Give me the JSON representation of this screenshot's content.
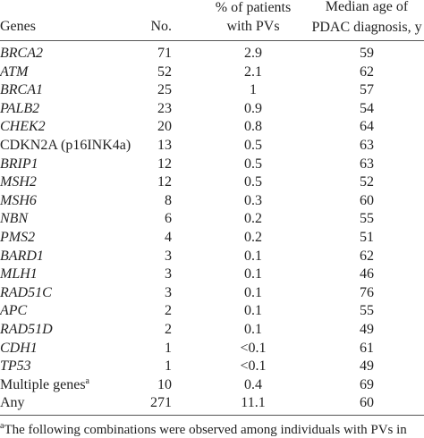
{
  "table": {
    "header": {
      "genes": "Genes",
      "no": "No.",
      "pct": [
        "% of patients",
        "with PVs"
      ],
      "age": [
        "Median age of",
        "PDAC diagnosis, y"
      ]
    },
    "rows": [
      {
        "gene": "BRCA2",
        "italic": true,
        "no": 71,
        "pct": 2.9,
        "age": 59
      },
      {
        "gene": "ATM",
        "italic": true,
        "no": 52,
        "pct": 2.1,
        "age": 62
      },
      {
        "gene": "BRCA1",
        "italic": true,
        "no": 25,
        "pct": 1,
        "age": 57
      },
      {
        "gene": "PALB2",
        "italic": true,
        "no": 23,
        "pct": 0.9,
        "age": 54
      },
      {
        "gene": "CHEK2",
        "italic": true,
        "no": 20,
        "pct": 0.8,
        "age": 64
      },
      {
        "gene": "CDKN2A (p16INK4a)",
        "italic": false,
        "no": 13,
        "pct": 0.5,
        "age": 63
      },
      {
        "gene": "BRIP1",
        "italic": true,
        "no": 12,
        "pct": 0.5,
        "age": 63
      },
      {
        "gene": "MSH2",
        "italic": true,
        "no": 12,
        "pct": 0.5,
        "age": 52
      },
      {
        "gene": "MSH6",
        "italic": true,
        "no": 8,
        "pct": 0.3,
        "age": 60
      },
      {
        "gene": "NBN",
        "italic": true,
        "no": 6,
        "pct": 0.2,
        "age": 55
      },
      {
        "gene": "PMS2",
        "italic": true,
        "no": 4,
        "pct": 0.2,
        "age": 51
      },
      {
        "gene": "BARD1",
        "italic": true,
        "no": 3,
        "pct": 0.1,
        "age": 62
      },
      {
        "gene": "MLH1",
        "italic": true,
        "no": 3,
        "pct": 0.1,
        "age": 46
      },
      {
        "gene": "RAD51C",
        "italic": true,
        "no": 3,
        "pct": 0.1,
        "age": 76
      },
      {
        "gene": "APC",
        "italic": true,
        "no": 2,
        "pct": 0.1,
        "age": 55
      },
      {
        "gene": "RAD51D",
        "italic": true,
        "no": 2,
        "pct": 0.1,
        "age": 49
      },
      {
        "gene": "CDH1",
        "italic": true,
        "no": 1,
        "pct": "<0.1",
        "age": 61
      },
      {
        "gene": "TP53",
        "italic": true,
        "no": 1,
        "pct": "<0.1",
        "age": 49
      },
      {
        "gene": "Multiple genes",
        "sup": "a",
        "italic": false,
        "no": 10,
        "pct": 0.4,
        "age": 69
      },
      {
        "gene": "Any",
        "italic": false,
        "no": 271,
        "pct": 11.1,
        "age": 60
      }
    ],
    "footnote": {
      "mark": "a",
      "text": "The following combinations were observed among individuals with PVs in"
    }
  }
}
